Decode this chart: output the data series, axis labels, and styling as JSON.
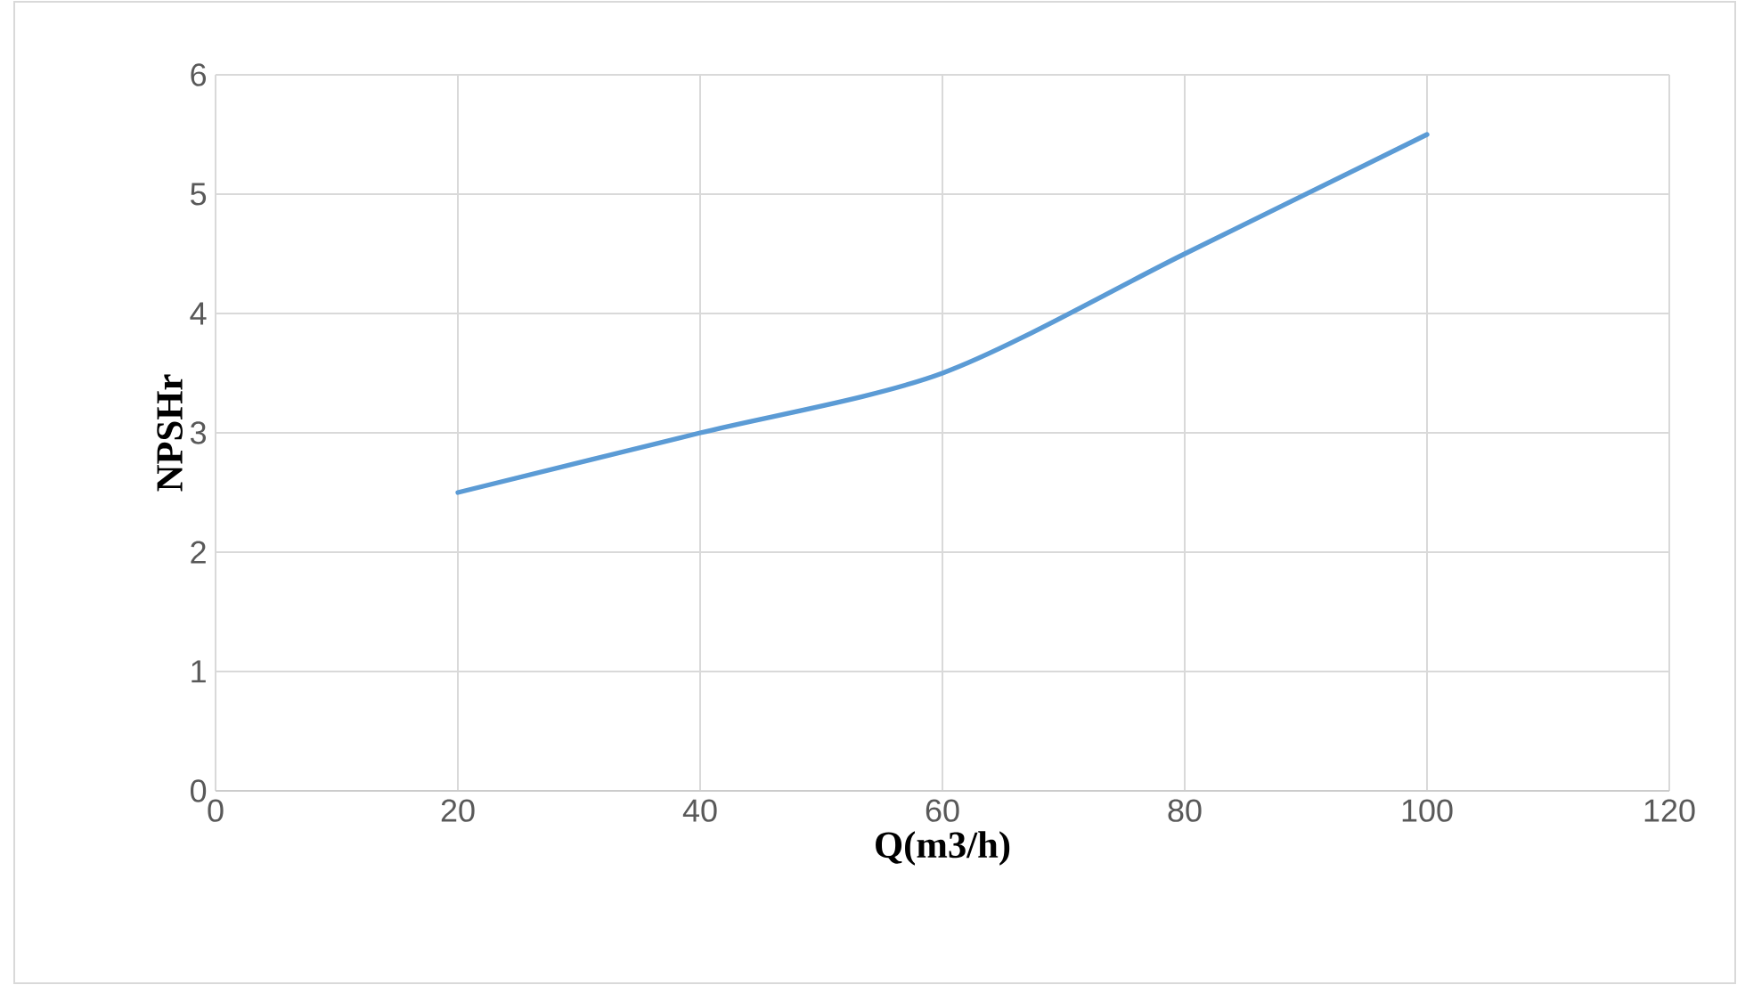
{
  "chart_data": {
    "type": "line",
    "xlabel": "Q(m3/h)",
    "ylabel": "NPSHr",
    "x": [
      20,
      40,
      60,
      80,
      100
    ],
    "series": [
      {
        "color": "#5b9bd5",
        "values": [
          2.5,
          3,
          3.5,
          4.5,
          5.5
        ]
      }
    ],
    "xlim": [
      0,
      120
    ],
    "ylim": [
      0,
      6
    ],
    "xticks": [
      0,
      20,
      40,
      60,
      80,
      100,
      120
    ],
    "yticks": [
      0,
      1,
      2,
      3,
      4,
      5,
      6
    ],
    "grid": true
  }
}
